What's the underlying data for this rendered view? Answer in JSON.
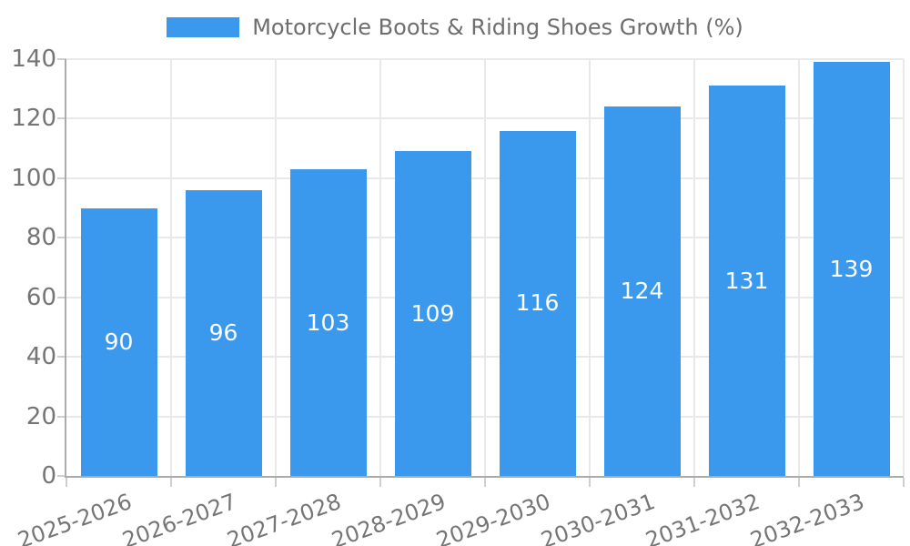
{
  "chart_data": {
    "type": "bar",
    "title": "Motorcycle Boots & Riding Shoes Growth (%)",
    "legend": {
      "position": "top",
      "label": "Motorcycle Boots & Riding Shoes Growth (%)"
    },
    "categories": [
      "2025-2026",
      "2026-2027",
      "2027-2028",
      "2028-2029",
      "2029-2030",
      "2030-2031",
      "2031-2032",
      "2032-2033"
    ],
    "values": [
      90,
      96,
      103,
      109,
      116,
      124,
      131,
      139
    ],
    "value_labels": [
      "90",
      "96",
      "103",
      "109",
      "116",
      "124",
      "131",
      "139"
    ],
    "value_label_position": "inside-center",
    "xlabel": "",
    "ylabel": "",
    "ylim": [
      0,
      140
    ],
    "ytick_step": 20,
    "yticks": [
      "0",
      "20",
      "40",
      "60",
      "80",
      "100",
      "120",
      "140"
    ],
    "grid": true,
    "x_label_rotation_deg": -20,
    "colors": {
      "bar": "#3A99EC",
      "gridline": "#E9E9E9",
      "axis_line": "#ABABAB",
      "tick_mark": "#CFCFCF",
      "tick_text": "#757575",
      "legend_text": "#6E6E6E",
      "bar_value_text": "#FFFFFF",
      "background": "#FFFFFF"
    }
  }
}
